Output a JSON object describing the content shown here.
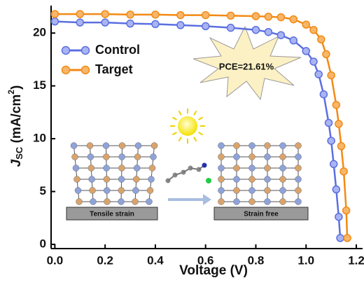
{
  "chart_data": {
    "type": "line",
    "xlabel": "Voltage (V)",
    "ylabel": [
      "J",
      "SC",
      " (mA/cm",
      "2",
      ")"
    ],
    "xlim": [
      -0.015,
      1.225
    ],
    "ylim": [
      -0.4,
      22.6
    ],
    "xticks": [
      {
        "value": 0,
        "label": "0.0"
      },
      {
        "value": 0.2,
        "label": "0.2"
      },
      {
        "value": 0.4,
        "label": "0.4"
      },
      {
        "value": 0.6,
        "label": "0.6"
      },
      {
        "value": 0.8,
        "label": "0.8"
      },
      {
        "value": 1.0,
        "label": "1.0"
      },
      {
        "value": 1.2,
        "label": "1.2"
      }
    ],
    "yticks": [
      0,
      5,
      10,
      15,
      20
    ],
    "legend": "upper left",
    "series": [
      {
        "name": "Control",
        "color": "#5b6fe0",
        "fill": "#a9b4f2",
        "x": [
          0,
          0.1,
          0.2,
          0.3,
          0.4,
          0.5,
          0.6,
          0.7,
          0.8,
          0.85,
          0.9,
          0.95,
          1.0,
          1.03,
          1.05,
          1.07,
          1.09,
          1.1,
          1.11,
          1.12,
          1.13,
          1.136
        ],
        "values": [
          21.1,
          21.0,
          21.0,
          20.9,
          20.85,
          20.75,
          20.65,
          20.5,
          20.3,
          20.1,
          19.8,
          19.3,
          18.3,
          17.3,
          16.1,
          14.2,
          11.5,
          9.8,
          7.6,
          5.2,
          2.6,
          0.6
        ]
      },
      {
        "name": "Target",
        "color": "#f28a14",
        "fill": "#f7b66a",
        "x": [
          0,
          0.1,
          0.2,
          0.3,
          0.4,
          0.5,
          0.6,
          0.7,
          0.8,
          0.85,
          0.9,
          0.95,
          1.0,
          1.03,
          1.06,
          1.08,
          1.1,
          1.12,
          1.13,
          1.14,
          1.15,
          1.16,
          1.164
        ],
        "values": [
          21.8,
          21.8,
          21.8,
          21.75,
          21.75,
          21.7,
          21.7,
          21.65,
          21.6,
          21.55,
          21.5,
          21.3,
          20.8,
          20.3,
          19.4,
          18.0,
          16.0,
          13.2,
          11.4,
          9.3,
          6.9,
          3.2,
          0.6
        ]
      }
    ],
    "annotations": [
      "PCE=21.61%",
      "Tensile strain",
      "Strain free"
    ]
  }
}
